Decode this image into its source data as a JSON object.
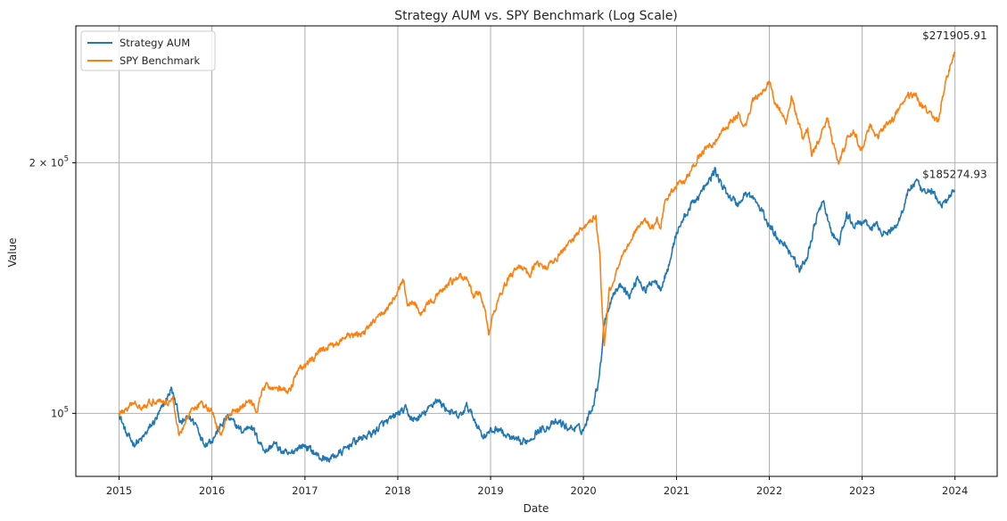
{
  "chart_data": {
    "type": "line",
    "title": "Strategy AUM vs. SPY Benchmark (Log Scale)",
    "xlabel": "Date",
    "ylabel": "Value",
    "yscale": "log",
    "xlim": [
      "2014-07-15",
      "2024-06-15"
    ],
    "ylim": [
      84000,
      292000
    ],
    "grid": true,
    "legend_position": "top-left",
    "x_ticks": [
      "2015",
      "2016",
      "2017",
      "2018",
      "2019",
      "2020",
      "2021",
      "2022",
      "2023",
      "2024"
    ],
    "y_ticks": [
      {
        "value": 100000,
        "base": "10",
        "exp": "5",
        "coef": ""
      },
      {
        "value": 200000,
        "base": "10",
        "exp": "5",
        "coef": "2 × "
      }
    ],
    "series": [
      {
        "name": "Strategy AUM",
        "color": "#1f77b4",
        "points": [
          [
            "2015-01-01",
            100000
          ],
          [
            "2015-02-01",
            94000
          ],
          [
            "2015-03-01",
            92000
          ],
          [
            "2015-04-01",
            93000
          ],
          [
            "2015-05-01",
            96000
          ],
          [
            "2015-06-01",
            99000
          ],
          [
            "2015-07-01",
            103000
          ],
          [
            "2015-07-25",
            107000
          ],
          [
            "2015-08-15",
            102000
          ],
          [
            "2015-09-01",
            97000
          ],
          [
            "2015-10-01",
            99000
          ],
          [
            "2015-11-01",
            97000
          ],
          [
            "2015-12-01",
            92000
          ],
          [
            "2016-01-01",
            93000
          ],
          [
            "2016-02-01",
            96000
          ],
          [
            "2016-03-01",
            99000
          ],
          [
            "2016-04-01",
            97000
          ],
          [
            "2016-05-01",
            95000
          ],
          [
            "2016-06-01",
            97000
          ],
          [
            "2016-07-01",
            93000
          ],
          [
            "2016-08-01",
            90000
          ],
          [
            "2016-09-01",
            92000
          ],
          [
            "2016-10-01",
            90000
          ],
          [
            "2016-11-01",
            89000
          ],
          [
            "2016-12-01",
            91000
          ],
          [
            "2017-01-01",
            91500
          ],
          [
            "2017-02-01",
            90000
          ],
          [
            "2017-03-01",
            88500
          ],
          [
            "2017-04-01",
            88000
          ],
          [
            "2017-05-01",
            89000
          ],
          [
            "2017-06-01",
            90000
          ],
          [
            "2017-07-01",
            92000
          ],
          [
            "2017-08-01",
            93000
          ],
          [
            "2017-09-01",
            94000
          ],
          [
            "2017-10-01",
            95000
          ],
          [
            "2017-11-01",
            97000
          ],
          [
            "2017-12-01",
            98000
          ],
          [
            "2018-01-01",
            100000
          ],
          [
            "2018-02-01",
            101000
          ],
          [
            "2018-03-01",
            98000
          ],
          [
            "2018-04-01",
            99000
          ],
          [
            "2018-05-01",
            101000
          ],
          [
            "2018-06-01",
            104000
          ],
          [
            "2018-07-01",
            102000
          ],
          [
            "2018-08-01",
            100000
          ],
          [
            "2018-09-01",
            99000
          ],
          [
            "2018-10-01",
            102000
          ],
          [
            "2018-11-01",
            98000
          ],
          [
            "2018-12-01",
            94000
          ],
          [
            "2019-01-01",
            95000
          ],
          [
            "2019-02-01",
            96000
          ],
          [
            "2019-03-01",
            94000
          ],
          [
            "2019-04-01",
            93000
          ],
          [
            "2019-05-01",
            92000
          ],
          [
            "2019-06-01",
            93000
          ],
          [
            "2019-07-01",
            95000
          ],
          [
            "2019-08-01",
            96000
          ],
          [
            "2019-09-01",
            97000
          ],
          [
            "2019-10-01",
            97500
          ],
          [
            "2019-11-01",
            96000
          ],
          [
            "2019-12-01",
            96000
          ],
          [
            "2020-01-01",
            95500
          ],
          [
            "2020-01-20",
            99000
          ],
          [
            "2020-02-10",
            103000
          ],
          [
            "2020-02-25",
            108000
          ],
          [
            "2020-03-10",
            115000
          ],
          [
            "2020-03-20",
            127000
          ],
          [
            "2020-04-01",
            132000
          ],
          [
            "2020-05-01",
            140000
          ],
          [
            "2020-06-01",
            143000
          ],
          [
            "2020-07-01",
            138000
          ],
          [
            "2020-08-01",
            146000
          ],
          [
            "2020-09-01",
            140000
          ],
          [
            "2020-10-01",
            145000
          ],
          [
            "2020-11-01",
            142000
          ],
          [
            "2020-12-01",
            150000
          ],
          [
            "2021-01-01",
            165000
          ],
          [
            "2021-02-01",
            172000
          ],
          [
            "2021-03-01",
            178000
          ],
          [
            "2021-04-01",
            183000
          ],
          [
            "2021-05-01",
            188000
          ],
          [
            "2021-06-01",
            196000
          ],
          [
            "2021-07-01",
            187000
          ],
          [
            "2021-08-01",
            182000
          ],
          [
            "2021-09-01",
            178000
          ],
          [
            "2021-10-01",
            184000
          ],
          [
            "2021-11-01",
            181000
          ],
          [
            "2021-12-01",
            175000
          ],
          [
            "2022-01-01",
            168000
          ],
          [
            "2022-02-01",
            163000
          ],
          [
            "2022-03-01",
            160000
          ],
          [
            "2022-04-01",
            155000
          ],
          [
            "2022-05-01",
            148000
          ],
          [
            "2022-06-01",
            155000
          ],
          [
            "2022-07-01",
            170000
          ],
          [
            "2022-08-01",
            180000
          ],
          [
            "2022-09-01",
            165000
          ],
          [
            "2022-10-01",
            160000
          ],
          [
            "2022-11-01",
            173000
          ],
          [
            "2022-12-01",
            168000
          ],
          [
            "2023-01-01",
            170000
          ],
          [
            "2023-02-01",
            167000
          ],
          [
            "2023-03-01",
            168000
          ],
          [
            "2023-04-01",
            164000
          ],
          [
            "2023-05-01",
            166000
          ],
          [
            "2023-06-01",
            172000
          ],
          [
            "2023-07-01",
            185000
          ],
          [
            "2023-08-01",
            190000
          ],
          [
            "2023-09-01",
            183000
          ],
          [
            "2023-10-01",
            186000
          ],
          [
            "2023-11-01",
            178000
          ],
          [
            "2023-12-01",
            180000
          ],
          [
            "2023-12-31",
            185274.93
          ]
        ]
      },
      {
        "name": "SPY Benchmark",
        "color": "#ff7f0e",
        "points": [
          [
            "2015-01-01",
            100000
          ],
          [
            "2015-02-01",
            101000
          ],
          [
            "2015-03-01",
            103000
          ],
          [
            "2015-04-01",
            102000
          ],
          [
            "2015-05-01",
            103000
          ],
          [
            "2015-06-01",
            104000
          ],
          [
            "2015-07-01",
            103000
          ],
          [
            "2015-08-01",
            104000
          ],
          [
            "2015-08-25",
            94000
          ],
          [
            "2015-09-15",
            97000
          ],
          [
            "2015-10-15",
            101000
          ],
          [
            "2015-11-15",
            103000
          ],
          [
            "2015-12-15",
            101000
          ],
          [
            "2016-01-01",
            101000
          ],
          [
            "2016-02-01",
            94000
          ],
          [
            "2016-03-01",
            99000
          ],
          [
            "2016-04-01",
            101000
          ],
          [
            "2016-05-01",
            102000
          ],
          [
            "2016-06-01",
            104000
          ],
          [
            "2016-06-25",
            100000
          ],
          [
            "2016-07-15",
            106000
          ],
          [
            "2016-08-01",
            108000
          ],
          [
            "2016-10-01",
            107000
          ],
          [
            "2016-11-01",
            106000
          ],
          [
            "2016-12-01",
            112000
          ],
          [
            "2017-01-01",
            114000
          ],
          [
            "2017-02-01",
            116000
          ],
          [
            "2017-03-01",
            119000
          ],
          [
            "2017-04-01",
            120000
          ],
          [
            "2017-05-01",
            121000
          ],
          [
            "2017-06-01",
            123000
          ],
          [
            "2017-07-01",
            124000
          ],
          [
            "2017-08-01",
            124000
          ],
          [
            "2017-09-01",
            126000
          ],
          [
            "2017-10-01",
            129000
          ],
          [
            "2017-11-01",
            132000
          ],
          [
            "2017-12-01",
            135000
          ],
          [
            "2018-01-01",
            140000
          ],
          [
            "2018-01-25",
            144000
          ],
          [
            "2018-02-08",
            134000
          ],
          [
            "2018-03-01",
            137000
          ],
          [
            "2018-04-01",
            132000
          ],
          [
            "2018-05-01",
            135000
          ],
          [
            "2018-06-01",
            138000
          ],
          [
            "2018-07-01",
            141000
          ],
          [
            "2018-08-01",
            144000
          ],
          [
            "2018-09-01",
            146000
          ],
          [
            "2018-10-01",
            145000
          ],
          [
            "2018-10-25",
            138000
          ],
          [
            "2018-11-15",
            140000
          ],
          [
            "2018-12-10",
            134000
          ],
          [
            "2018-12-24",
            124000
          ],
          [
            "2019-01-15",
            132000
          ],
          [
            "2019-02-01",
            138000
          ],
          [
            "2019-03-01",
            143000
          ],
          [
            "2019-04-01",
            148000
          ],
          [
            "2019-05-01",
            150000
          ],
          [
            "2019-06-01",
            146000
          ],
          [
            "2019-07-01",
            153000
          ],
          [
            "2019-08-01",
            149000
          ],
          [
            "2019-09-01",
            152000
          ],
          [
            "2019-10-01",
            155000
          ],
          [
            "2019-11-01",
            160000
          ],
          [
            "2019-12-01",
            163000
          ],
          [
            "2020-01-01",
            168000
          ],
          [
            "2020-02-01",
            170000
          ],
          [
            "2020-02-19",
            173000
          ],
          [
            "2020-03-05",
            155000
          ],
          [
            "2020-03-16",
            130000
          ],
          [
            "2020-03-23",
            121000
          ],
          [
            "2020-04-10",
            140000
          ],
          [
            "2020-05-01",
            145000
          ],
          [
            "2020-06-01",
            155000
          ],
          [
            "2020-07-01",
            160000
          ],
          [
            "2020-08-01",
            168000
          ],
          [
            "2020-09-01",
            171000
          ],
          [
            "2020-09-25",
            166000
          ],
          [
            "2020-10-15",
            172000
          ],
          [
            "2020-10-30",
            165000
          ],
          [
            "2020-11-15",
            180000
          ],
          [
            "2020-12-01",
            182000
          ],
          [
            "2021-01-01",
            187000
          ],
          [
            "2021-02-01",
            190000
          ],
          [
            "2021-03-01",
            196000
          ],
          [
            "2021-04-01",
            204000
          ],
          [
            "2021-05-01",
            208000
          ],
          [
            "2021-06-01",
            212000
          ],
          [
            "2021-07-01",
            218000
          ],
          [
            "2021-08-01",
            224000
          ],
          [
            "2021-09-01",
            228000
          ],
          [
            "2021-10-01",
            222000
          ],
          [
            "2021-11-01",
            238000
          ],
          [
            "2021-12-01",
            242000
          ],
          [
            "2022-01-01",
            250000
          ],
          [
            "2022-01-25",
            236000
          ],
          [
            "2022-02-20",
            230000
          ],
          [
            "2022-03-08",
            222000
          ],
          [
            "2022-03-29",
            240000
          ],
          [
            "2022-04-15",
            230000
          ],
          [
            "2022-05-10",
            215000
          ],
          [
            "2022-06-01",
            220000
          ],
          [
            "2022-06-16",
            204000
          ],
          [
            "2022-07-15",
            212000
          ],
          [
            "2022-08-16",
            228000
          ],
          [
            "2022-09-01",
            215000
          ],
          [
            "2022-09-30",
            200000
          ],
          [
            "2022-10-15",
            205000
          ],
          [
            "2022-11-01",
            213000
          ],
          [
            "2022-12-01",
            218000
          ],
          [
            "2022-12-28",
            206000
          ],
          [
            "2023-01-15",
            214000
          ],
          [
            "2023-02-01",
            222000
          ],
          [
            "2023-03-01",
            214000
          ],
          [
            "2023-04-01",
            222000
          ],
          [
            "2023-05-01",
            225000
          ],
          [
            "2023-06-01",
            234000
          ],
          [
            "2023-07-01",
            241000
          ],
          [
            "2023-08-01",
            240000
          ],
          [
            "2023-09-01",
            233000
          ],
          [
            "2023-10-01",
            229000
          ],
          [
            "2023-10-27",
            224000
          ],
          [
            "2023-11-15",
            240000
          ],
          [
            "2023-12-01",
            254000
          ],
          [
            "2023-12-20",
            266000
          ],
          [
            "2023-12-31",
            271905.91
          ]
        ]
      }
    ],
    "annotations": [
      "$271905.91",
      "$185274.93"
    ]
  }
}
